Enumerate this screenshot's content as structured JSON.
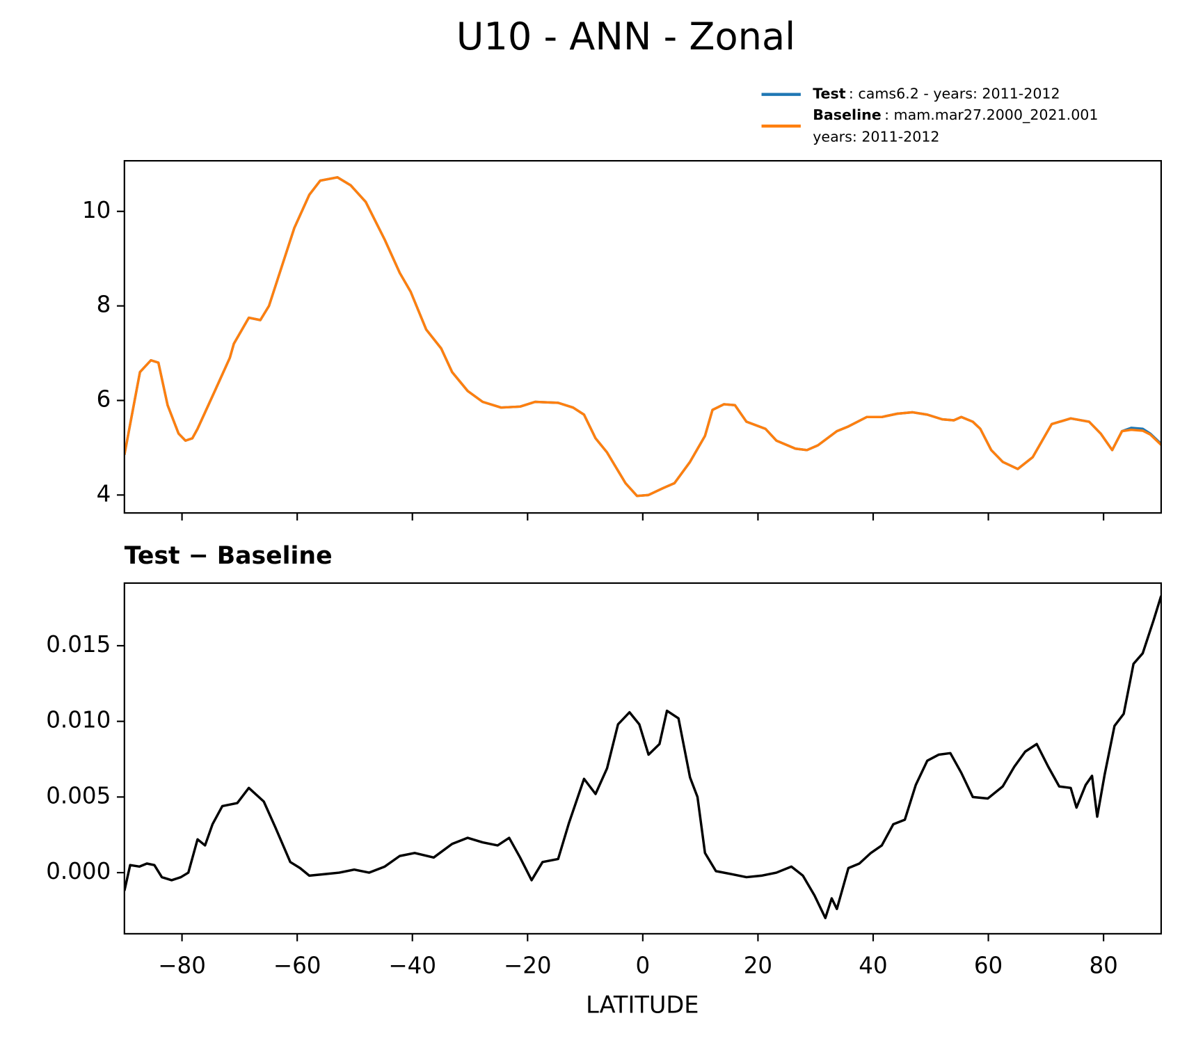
{
  "chart_data": [
    {
      "type": "line",
      "title": "U10 - ANN - Zonal",
      "x": [
        -90,
        -87.3,
        -85.4,
        -84.1,
        -82.5,
        -80.6,
        -79.4,
        -78.2,
        -77.3,
        -74.3,
        -71.7,
        -71,
        -68.4,
        -66.4,
        -64.9,
        -62.5,
        -60.5,
        -57.9,
        -56,
        -53,
        -50.7,
        -48.1,
        -44.8,
        -42.2,
        -40.3,
        -37.6,
        -35,
        -33.1,
        -30.4,
        -27.8,
        -24.6,
        -21.3,
        -18.7,
        -14.7,
        -12.1,
        -10.2,
        -8.2,
        -6.2,
        -3,
        -1,
        1,
        3.6,
        5.5,
        8.2,
        10.8,
        12.1,
        14.1,
        16,
        18,
        21.3,
        23.2,
        26.5,
        28.5,
        30.4,
        33.7,
        35.7,
        38.9,
        41.5,
        44.2,
        46.8,
        49.4,
        52,
        54,
        55.3,
        57.3,
        58.6,
        60.5,
        62.5,
        65.1,
        67.7,
        71,
        74.3,
        77.5,
        79.5,
        81.5,
        83.2,
        84.8,
        86.8,
        88.1,
        90
      ],
      "series": [
        {
          "name": "Test",
          "description": [
            ": cams6.2 - years: 2011-2012"
          ],
          "color": "#1f77b4",
          "values": [
            4.85,
            6.6,
            6.85,
            6.8,
            5.9,
            5.3,
            5.15,
            5.2,
            5.4,
            6.2,
            6.9,
            7.2,
            7.75,
            7.7,
            8.0,
            8.9,
            9.65,
            10.35,
            10.65,
            10.72,
            10.55,
            10.2,
            9.4,
            8.7,
            8.3,
            7.5,
            7.1,
            6.6,
            6.2,
            5.97,
            5.85,
            5.87,
            5.97,
            5.95,
            5.85,
            5.7,
            5.2,
            4.9,
            4.25,
            3.98,
            4.0,
            4.15,
            4.25,
            4.7,
            5.25,
            5.8,
            5.92,
            5.9,
            5.55,
            5.4,
            5.15,
            4.98,
            4.95,
            5.05,
            5.35,
            5.45,
            5.65,
            5.65,
            5.72,
            5.75,
            5.7,
            5.6,
            5.58,
            5.65,
            5.55,
            5.4,
            4.95,
            4.7,
            4.55,
            4.8,
            5.5,
            5.62,
            5.55,
            5.3,
            4.95,
            5.35,
            5.42,
            5.4,
            5.3,
            5.08
          ]
        },
        {
          "name": "Baseline",
          "description": [
            ": mam.mar27.2000_2021.001",
            "years: 2011-2012"
          ],
          "color": "#ff7f0e",
          "values": [
            4.85,
            6.6,
            6.85,
            6.8,
            5.9,
            5.3,
            5.15,
            5.2,
            5.4,
            6.2,
            6.9,
            7.2,
            7.75,
            7.7,
            8.0,
            8.9,
            9.65,
            10.35,
            10.65,
            10.72,
            10.55,
            10.2,
            9.4,
            8.7,
            8.3,
            7.5,
            7.1,
            6.6,
            6.2,
            5.97,
            5.85,
            5.87,
            5.97,
            5.95,
            5.85,
            5.7,
            5.2,
            4.9,
            4.25,
            3.98,
            4.0,
            4.15,
            4.25,
            4.7,
            5.25,
            5.8,
            5.92,
            5.9,
            5.55,
            5.4,
            5.15,
            4.98,
            4.95,
            5.05,
            5.35,
            5.45,
            5.65,
            5.65,
            5.72,
            5.75,
            5.7,
            5.6,
            5.58,
            5.65,
            5.55,
            5.4,
            4.95,
            4.7,
            4.55,
            4.8,
            5.5,
            5.62,
            5.55,
            5.3,
            4.95,
            5.35,
            5.38,
            5.36,
            5.28,
            5.06
          ]
        }
      ],
      "xlim": [
        -90,
        90
      ],
      "xticks": [
        {
          "value": -80,
          "label": "−80"
        },
        {
          "value": -60,
          "label": "−60"
        },
        {
          "value": -40,
          "label": "−40"
        },
        {
          "value": -20,
          "label": "−20"
        },
        0,
        20,
        40,
        60,
        80
      ],
      "ylim": [
        3.62,
        11.07
      ],
      "yticks": [
        4,
        6,
        8,
        10
      ],
      "legend": "upper right"
    },
    {
      "type": "line",
      "title": "Test − Baseline",
      "xlabel": "LATITUDE",
      "x": [
        -90,
        -89,
        -87.4,
        -86.1,
        -84.8,
        -83.5,
        -81.8,
        -80.2,
        -78.9,
        -77.3,
        -76,
        -74.7,
        -73,
        -70.4,
        -68.4,
        -65.8,
        -63.8,
        -61.2,
        -59.5,
        -57.9,
        -55.3,
        -52.7,
        -50.1,
        -47.5,
        -44.8,
        -42.2,
        -39.6,
        -36.3,
        -33.1,
        -30.4,
        -27.8,
        -25.2,
        -23.2,
        -21.3,
        -19.3,
        -17.4,
        -14.7,
        -12.8,
        -10.2,
        -8.2,
        -6.2,
        -4.3,
        -2.3,
        -0.6,
        1,
        2.9,
        4.2,
        6.2,
        8.2,
        9.5,
        10.8,
        12.7,
        15.4,
        18,
        20.6,
        23.2,
        25.8,
        27.8,
        29.8,
        31.7,
        32.8,
        33.7,
        35.7,
        37.6,
        39.6,
        41.5,
        43.5,
        45.5,
        47.4,
        49.4,
        51.4,
        53.4,
        55.3,
        57.3,
        59.9,
        62.5,
        64.5,
        66.4,
        68.4,
        70.4,
        72.3,
        74.3,
        75.3,
        76.9,
        78,
        78.9,
        80.2,
        81.9,
        83.5,
        85.2,
        86.8,
        88.7,
        90
      ],
      "series": [
        {
          "name": "Test − Baseline",
          "color": "#000000",
          "values": [
            -0.0012,
            0.0005,
            0.0004,
            0.0006,
            0.0005,
            -0.0003,
            -0.0005,
            -0.0003,
            0,
            0.0022,
            0.0018,
            0.0032,
            0.0044,
            0.0046,
            0.0056,
            0.0047,
            0.003,
            0.0007,
            0.0003,
            -0.0002,
            -0.0001,
            0,
            0.0002,
            0,
            0.0004,
            0.0011,
            0.0013,
            0.001,
            0.0019,
            0.0023,
            0.002,
            0.0018,
            0.0023,
            0.001,
            -0.0005,
            0.0007,
            0.0009,
            0.0033,
            0.0062,
            0.0052,
            0.0069,
            0.0098,
            0.0106,
            0.0098,
            0.0078,
            0.0085,
            0.0107,
            0.0102,
            0.0063,
            0.005,
            0.0013,
            0.0001,
            -0.0001,
            -0.0003,
            -0.0002,
            0,
            0.0004,
            -0.0002,
            -0.0015,
            -0.003,
            -0.0017,
            -0.0024,
            0.0003,
            0.0006,
            0.0013,
            0.0018,
            0.0032,
            0.0035,
            0.0058,
            0.0074,
            0.0078,
            0.0079,
            0.0066,
            0.005,
            0.0049,
            0.0057,
            0.007,
            0.008,
            0.0085,
            0.007,
            0.0057,
            0.0056,
            0.0043,
            0.0058,
            0.0064,
            0.0037,
            0.0065,
            0.0097,
            0.0105,
            0.0138,
            0.0145,
            0.0167,
            0.0183
          ]
        }
      ],
      "xlim": [
        -90,
        90
      ],
      "xticks": [
        {
          "value": -80,
          "label": "−80"
        },
        {
          "value": -60,
          "label": "−60"
        },
        {
          "value": -40,
          "label": "−40"
        },
        {
          "value": -20,
          "label": "−20"
        },
        0,
        20,
        40,
        60,
        80
      ],
      "ylim": [
        -0.00404,
        0.01914
      ],
      "yticks": [
        {
          "value": 0,
          "label": "0.000"
        },
        {
          "value": 0.005,
          "label": "0.005"
        },
        {
          "value": 0.01,
          "label": "0.010"
        },
        {
          "value": 0.015,
          "label": "0.015"
        }
      ]
    }
  ]
}
